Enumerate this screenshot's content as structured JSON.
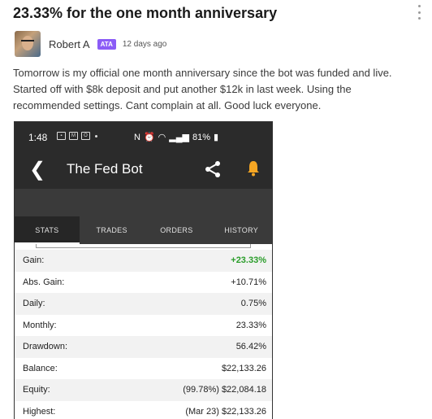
{
  "post": {
    "title": "23.33% for the one month anniversary",
    "author": "Robert A",
    "badge": "ATA",
    "time": "12 days ago",
    "body": "Tomorrow is my official one month anniversary since the bot was funded and live. Started off with $8k deposit and put another $12k in last week. Using the recommended settings. Cant complain at all. Good luck everyone."
  },
  "phone": {
    "status_time": "1:48",
    "battery": "81%",
    "app_title": "The Fed Bot",
    "tabs": [
      {
        "label": "STATS",
        "active": true
      },
      {
        "label": "TRADES",
        "active": false
      },
      {
        "label": "ORDERS",
        "active": false
      },
      {
        "label": "HISTORY",
        "active": false
      }
    ],
    "stats": [
      {
        "label": "Gain:",
        "value": "+23.33%",
        "highlight": true
      },
      {
        "label": "Abs. Gain:",
        "value": "+10.71%"
      },
      {
        "label": "Daily:",
        "value": "0.75%"
      },
      {
        "label": "Monthly:",
        "value": "23.33%"
      },
      {
        "label": "Drawdown:",
        "value": "56.42%"
      },
      {
        "label": "Balance:",
        "value": "$22,133.26"
      },
      {
        "label": "Equity:",
        "value": "(99.78%) $22,084.18"
      },
      {
        "label": "Highest:",
        "value": "(Mar 23) $22,133.26"
      }
    ]
  },
  "colors": {
    "badge": "#8b5cf6",
    "gain_green": "#2a9d2a",
    "app_bar": "#2b2b2b",
    "bell": "#f5a623"
  },
  "icons": [
    "more-vertical-icon",
    "back-arrow-icon",
    "share-icon",
    "bell-icon",
    "wifi-icon",
    "signal-icon",
    "battery-icon"
  ]
}
